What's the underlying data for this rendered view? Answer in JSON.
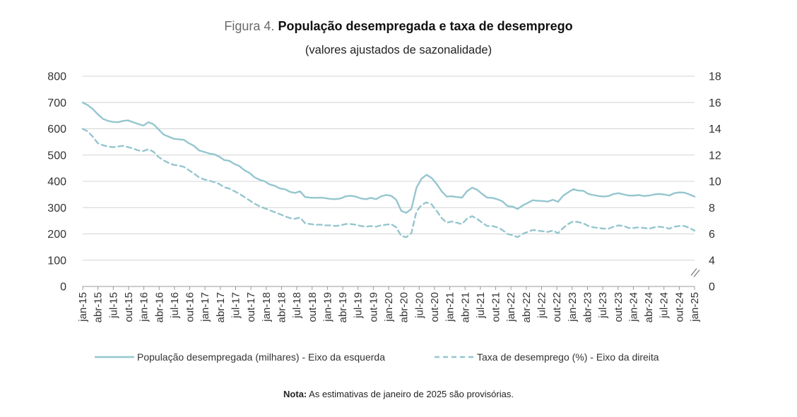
{
  "chart_data": {
    "type": "line",
    "title_prefix": "Figura 4.",
    "title": "População desempregada e taxa de desemprego",
    "subtitle": "(valores ajustados de sazonalidade)",
    "y_left": {
      "ticks": [
        "0",
        "100",
        "200",
        "300",
        "400",
        "500",
        "600",
        "700",
        "800"
      ],
      "range": [
        0,
        800
      ]
    },
    "y_right": {
      "ticks": [
        "0",
        "4",
        "6",
        "8",
        "10",
        "12",
        "14",
        "16",
        "18"
      ],
      "range": [
        2,
        18
      ],
      "break": true
    },
    "x_labels": [
      "jan-15",
      "abr-15",
      "jul-15",
      "out-15",
      "jan-16",
      "abr-16",
      "jul-16",
      "out-16",
      "jan-17",
      "abr-17",
      "jul-17",
      "out-17",
      "jan-18",
      "abr-18",
      "jul-18",
      "out-18",
      "jan-19",
      "abr-19",
      "jul-19",
      "out-19",
      "jan-20",
      "abr-20",
      "jul-20",
      "out-20",
      "jan-21",
      "abr-21",
      "jul-21",
      "out-21",
      "jan-22",
      "abr-22",
      "jul-22",
      "out-22",
      "jan-23",
      "abr-23",
      "jul-23",
      "out-23",
      "jan-24",
      "abr-24",
      "jul-24",
      "out-24",
      "jan-25"
    ],
    "series": [
      {
        "name": "População desempregada (milhares) - Eixo da esquerda",
        "axis": "left",
        "style": "solid",
        "color": "#95c6cf",
        "values": [
          700,
          690,
          675,
          655,
          638,
          630,
          626,
          625,
          630,
          632,
          625,
          618,
          612,
          625,
          617,
          598,
          578,
          570,
          562,
          560,
          558,
          545,
          535,
          518,
          512,
          506,
          503,
          494,
          481,
          478,
          466,
          458,
          442,
          432,
          415,
          406,
          400,
          388,
          383,
          373,
          370,
          360,
          356,
          362,
          340,
          338,
          337,
          338,
          336,
          333,
          332,
          335,
          343,
          345,
          342,
          335,
          332,
          337,
          332,
          343,
          348,
          345,
          330,
          288,
          280,
          295,
          375,
          410,
          425,
          413,
          390,
          362,
          342,
          343,
          340,
          338,
          362,
          376,
          368,
          352,
          338,
          337,
          332,
          324,
          306,
          304,
          295,
          308,
          318,
          328,
          326,
          325,
          323,
          330,
          322,
          345,
          358,
          370,
          365,
          364,
          352,
          348,
          344,
          342,
          344,
          352,
          355,
          350,
          346,
          346,
          348,
          344,
          346,
          350,
          352,
          350,
          346,
          355,
          358,
          357,
          350,
          342
        ]
      },
      {
        "name": "Taxa de desemprego (%) - Eixo da direita",
        "axis": "right",
        "style": "dashed",
        "color": "#95c6cf",
        "values": [
          14.0,
          13.8,
          13.4,
          12.9,
          12.75,
          12.65,
          12.6,
          12.65,
          12.7,
          12.6,
          12.5,
          12.35,
          12.3,
          12.45,
          12.25,
          11.85,
          11.6,
          11.4,
          11.25,
          11.2,
          11.1,
          10.85,
          10.6,
          10.3,
          10.15,
          10.05,
          9.95,
          9.8,
          9.55,
          9.45,
          9.25,
          9.05,
          8.8,
          8.55,
          8.3,
          8.1,
          7.95,
          7.8,
          7.65,
          7.5,
          7.35,
          7.2,
          7.15,
          7.25,
          6.8,
          6.75,
          6.7,
          6.7,
          6.65,
          6.65,
          6.6,
          6.65,
          6.75,
          6.75,
          6.7,
          6.6,
          6.55,
          6.6,
          6.55,
          6.65,
          6.7,
          6.75,
          6.5,
          5.85,
          5.75,
          6.05,
          7.7,
          8.2,
          8.4,
          8.25,
          7.75,
          7.2,
          6.85,
          6.95,
          6.85,
          6.75,
          7.15,
          7.35,
          7.15,
          6.85,
          6.6,
          6.6,
          6.5,
          6.3,
          6.0,
          5.9,
          5.75,
          6.0,
          6.15,
          6.3,
          6.25,
          6.2,
          6.15,
          6.25,
          6.05,
          6.45,
          6.75,
          6.95,
          6.9,
          6.8,
          6.6,
          6.5,
          6.45,
          6.4,
          6.4,
          6.55,
          6.65,
          6.6,
          6.45,
          6.45,
          6.5,
          6.45,
          6.4,
          6.5,
          6.55,
          6.5,
          6.4,
          6.55,
          6.6,
          6.6,
          6.45,
          6.25
        ]
      }
    ],
    "grid": true,
    "legend_position": "bottom"
  },
  "note": {
    "label": "Nota:",
    "text": " As estimativas de janeiro de 2025 são provisórias."
  }
}
